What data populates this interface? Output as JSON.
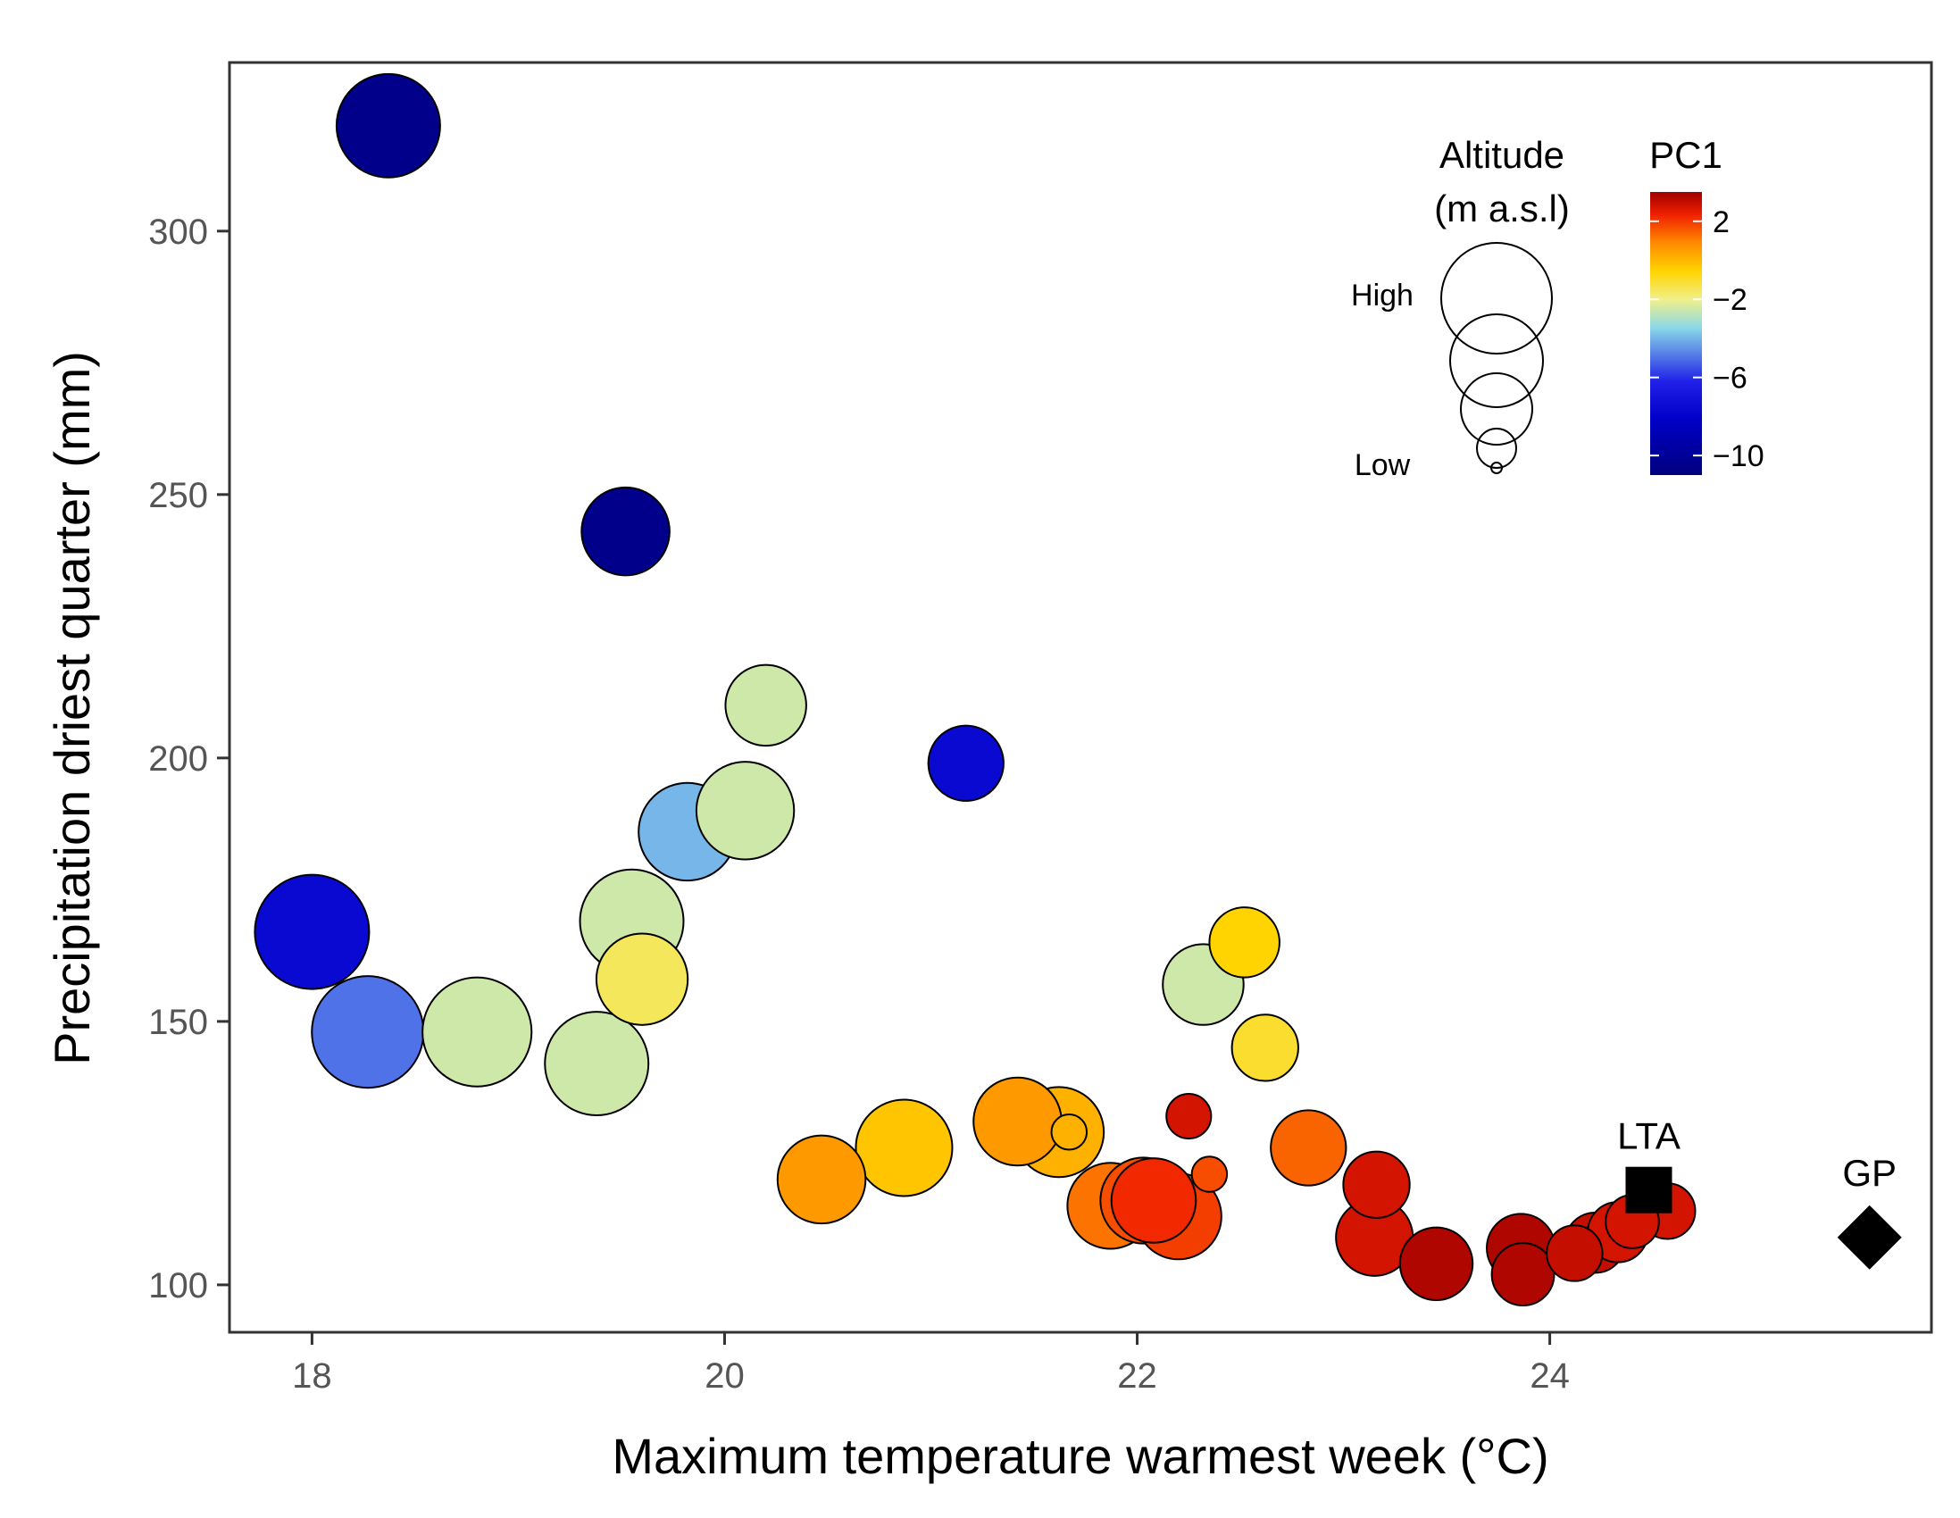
{
  "chart_data": {
    "type": "scatter",
    "xlabel": "Maximum temperature warmest week (°C)",
    "ylabel": "Precipitation driest quarter (mm)",
    "xlim": [
      17.6,
      25.85
    ],
    "ylim": [
      91,
      332
    ],
    "x_ticks": [
      "18",
      "20",
      "22",
      "24"
    ],
    "y_ticks": [
      "100",
      "150",
      "200",
      "250",
      "300"
    ],
    "grid": false,
    "size_legend": {
      "title_line1": "Altitude",
      "title_line2": "(m a.s.l)",
      "high_label": "High",
      "low_label": "Low",
      "placement": "top-right"
    },
    "color_legend": {
      "title": "PC1",
      "tick_labels": [
        "2",
        "−2",
        "−6",
        "−10"
      ],
      "tick_values": [
        2,
        -2,
        -6,
        -10
      ],
      "range": [
        -11,
        3.5
      ],
      "placement": "top-right"
    },
    "points": [
      {
        "x": 18.37,
        "y": 320,
        "pc1": -10.5,
        "altitude": 0.8
      },
      {
        "x": 19.52,
        "y": 243,
        "pc1": -10.5,
        "altitude": 0.55
      },
      {
        "x": 18.0,
        "y": 167,
        "pc1": -7.5,
        "altitude": 1.0
      },
      {
        "x": 18.27,
        "y": 148,
        "pc1": -5.0,
        "altitude": 0.95
      },
      {
        "x": 18.8,
        "y": 148,
        "pc1": -2.5,
        "altitude": 0.9
      },
      {
        "x": 19.38,
        "y": 142,
        "pc1": -2.5,
        "altitude": 0.8
      },
      {
        "x": 19.55,
        "y": 169,
        "pc1": -2.5,
        "altitude": 0.8
      },
      {
        "x": 19.6,
        "y": 158,
        "pc1": -1.5,
        "altitude": 0.6
      },
      {
        "x": 19.82,
        "y": 186,
        "pc1": -4.0,
        "altitude": 0.7
      },
      {
        "x": 20.1,
        "y": 190,
        "pc1": -2.5,
        "altitude": 0.7
      },
      {
        "x": 20.2,
        "y": 210,
        "pc1": -2.5,
        "altitude": 0.45
      },
      {
        "x": 21.17,
        "y": 199,
        "pc1": -7.5,
        "altitude": 0.38
      },
      {
        "x": 20.47,
        "y": 120,
        "pc1": 0.7,
        "altitude": 0.55
      },
      {
        "x": 20.87,
        "y": 126,
        "pc1": -0.2,
        "altitude": 0.68
      },
      {
        "x": 21.42,
        "y": 131,
        "pc1": 0.7,
        "altitude": 0.55
      },
      {
        "x": 21.62,
        "y": 129,
        "pc1": 0.2,
        "altitude": 0.58
      },
      {
        "x": 21.67,
        "y": 129,
        "pc1": 0.2,
        "altitude": 0.05
      },
      {
        "x": 21.87,
        "y": 115,
        "pc1": 1.3,
        "altitude": 0.52
      },
      {
        "x": 22.03,
        "y": 116,
        "pc1": 1.8,
        "altitude": 0.52
      },
      {
        "x": 22.08,
        "y": 116,
        "pc1": 2.3,
        "altitude": 0.5
      },
      {
        "x": 22.2,
        "y": 113,
        "pc1": 2.0,
        "altitude": 0.52
      },
      {
        "x": 22.25,
        "y": 132,
        "pc1": 2.8,
        "altitude": 0.1
      },
      {
        "x": 22.35,
        "y": 121,
        "pc1": 1.8,
        "altitude": 0.05
      },
      {
        "x": 22.32,
        "y": 157,
        "pc1": -2.5,
        "altitude": 0.45
      },
      {
        "x": 22.52,
        "y": 165,
        "pc1": -0.5,
        "altitude": 0.32
      },
      {
        "x": 22.62,
        "y": 145,
        "pc1": -1.0,
        "altitude": 0.28
      },
      {
        "x": 22.83,
        "y": 126,
        "pc1": 1.5,
        "altitude": 0.38
      },
      {
        "x": 23.16,
        "y": 119,
        "pc1": 2.8,
        "altitude": 0.28
      },
      {
        "x": 23.15,
        "y": 109,
        "pc1": 2.8,
        "altitude": 0.4
      },
      {
        "x": 23.45,
        "y": 104,
        "pc1": 3.3,
        "altitude": 0.35
      },
      {
        "x": 23.86,
        "y": 107,
        "pc1": 3.3,
        "altitude": 0.3
      },
      {
        "x": 23.87,
        "y": 102,
        "pc1": 3.3,
        "altitude": 0.24
      },
      {
        "x": 24.12,
        "y": 106,
        "pc1": 3.0,
        "altitude": 0.18
      },
      {
        "x": 24.22,
        "y": 108,
        "pc1": 3.0,
        "altitude": 0.22
      },
      {
        "x": 24.33,
        "y": 110,
        "pc1": 2.8,
        "altitude": 0.22
      },
      {
        "x": 24.4,
        "y": 112,
        "pc1": 2.8,
        "altitude": 0.16
      },
      {
        "x": 24.57,
        "y": 114,
        "pc1": 2.8,
        "altitude": 0.18
      }
    ],
    "reference_points": [
      {
        "label": "LTA",
        "x": 24.48,
        "y": 118,
        "shape": "square"
      },
      {
        "label": "GP",
        "x": 25.55,
        "y": 109,
        "shape": "diamond"
      }
    ]
  }
}
